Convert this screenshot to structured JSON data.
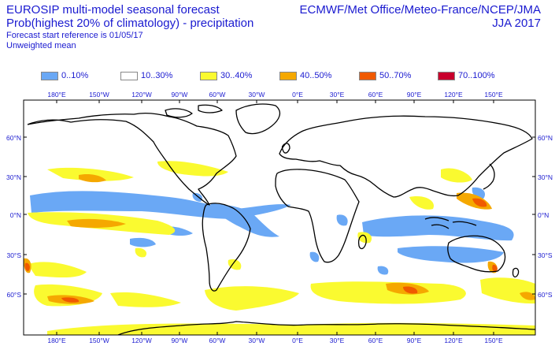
{
  "header": {
    "title": "EUROSIP multi-model seasonal forecast",
    "subtitle": "Prob(highest 20% of climatology) - precipitation",
    "forecast_ref": "Forecast start reference is 01/05/17",
    "weighting": "Unweighted mean",
    "centres": "ECMWF/Met Office/Meteo-France/NCEP/JMA",
    "season": "JJA 2017"
  },
  "legend": [
    {
      "label": "0..10%",
      "color": "#6aa8f5"
    },
    {
      "label": "10..30%",
      "color": "#ffffff"
    },
    {
      "label": "30..40%",
      "color": "#fafa30"
    },
    {
      "label": "40..50%",
      "color": "#f5a800"
    },
    {
      "label": "50..70%",
      "color": "#f05a00"
    },
    {
      "label": "70..100%",
      "color": "#c8002d"
    }
  ],
  "map": {
    "lon_labels": [
      "180°E",
      "150°W",
      "120°W",
      "90°W",
      "60°W",
      "30°W",
      "0°E",
      "30°E",
      "60°E",
      "90°E",
      "120°E",
      "150°E"
    ],
    "lat_labels": [
      "60°N",
      "30°N",
      "0°N",
      "30°S",
      "60°S"
    ]
  }
}
